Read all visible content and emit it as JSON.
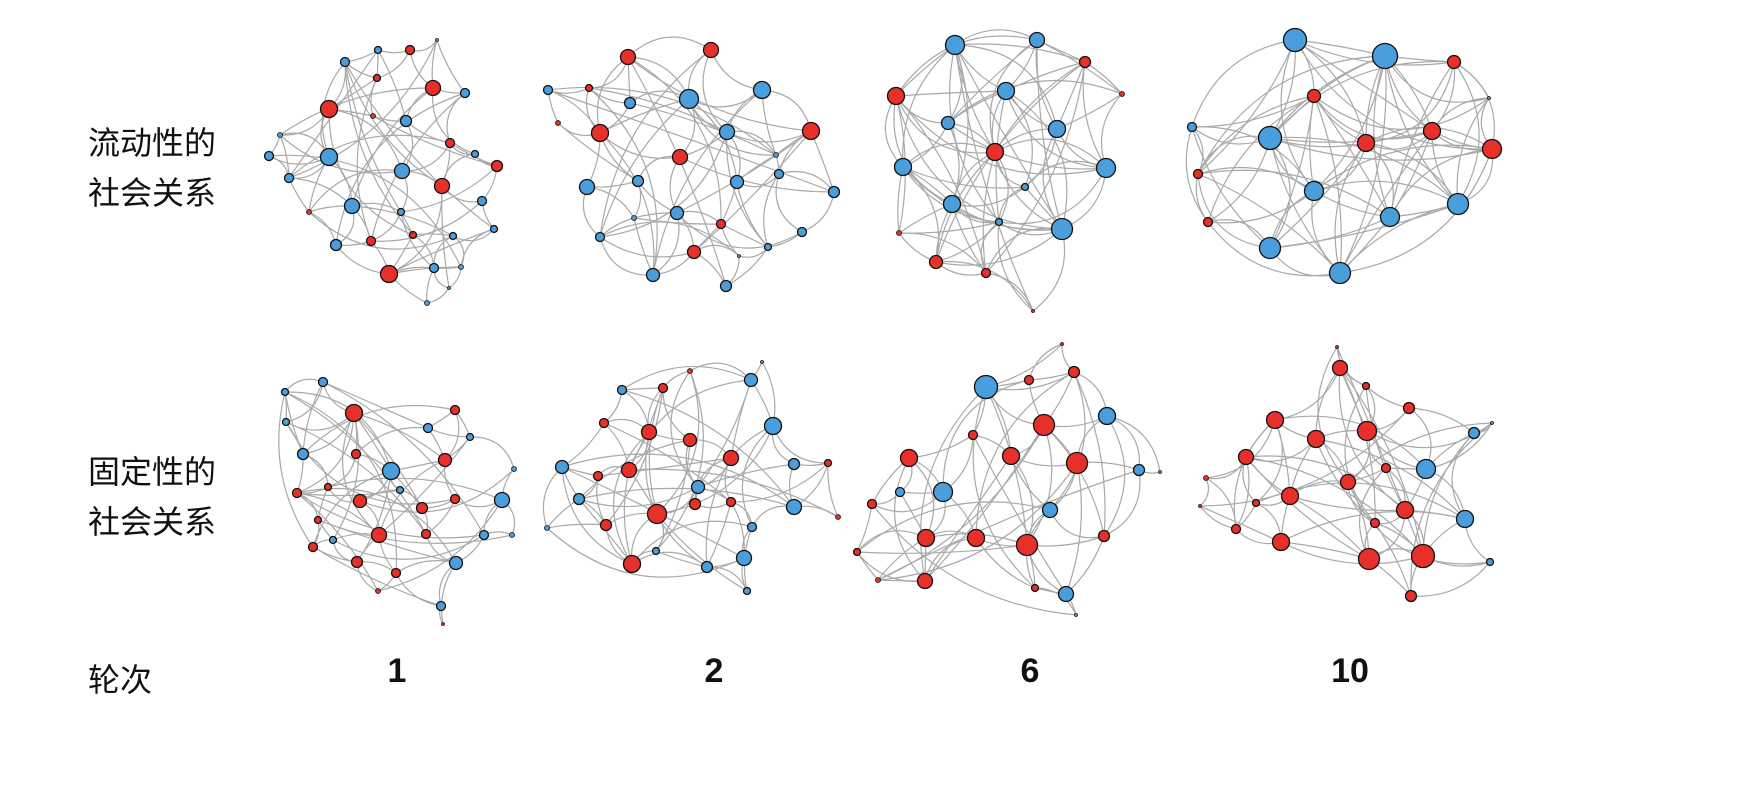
{
  "rows": [
    {
      "label": "流动性的\n社会关系"
    },
    {
      "label": "固定性的\n社会关系"
    }
  ],
  "rounds_label": "轮次",
  "rounds": [
    "1",
    "2",
    "6",
    "10"
  ],
  "colors": {
    "red_node": "#e8302a",
    "blue_node": "#4a9edb",
    "edge": "#a9a9a9",
    "node_stroke": "#111111"
  }
}
